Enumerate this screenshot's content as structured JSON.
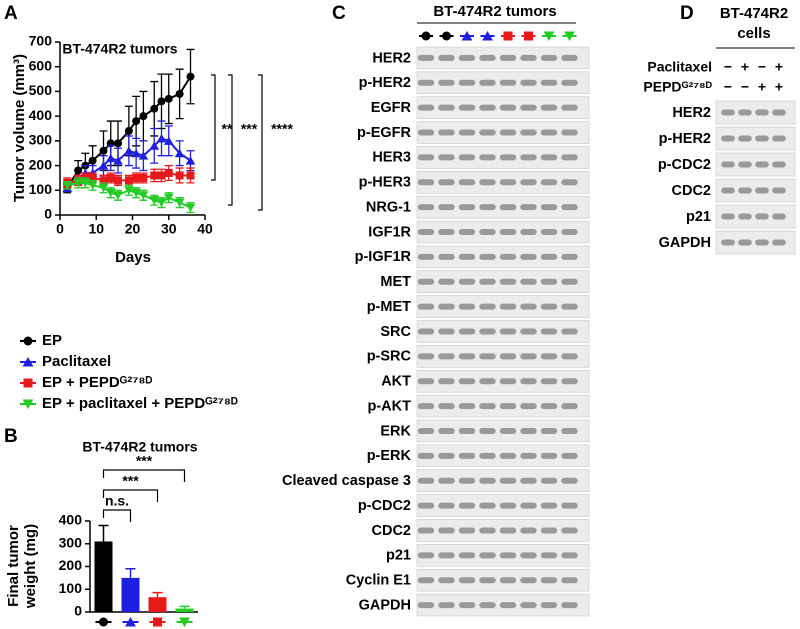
{
  "panel_labels": [
    "A",
    "B",
    "C",
    "D"
  ],
  "chart_data": [
    {
      "type": "line",
      "title": "BT-474R2 tumors",
      "xlabel": "Days",
      "ylabel": "Tumor volume (mm³)",
      "x": [
        2,
        5,
        7,
        9,
        12,
        14,
        16,
        19,
        21,
        23,
        26,
        28,
        30,
        33,
        36
      ],
      "xlim": [
        0,
        40
      ],
      "xticks": [
        0,
        10,
        20,
        30,
        40
      ],
      "ylim": [
        0,
        700
      ],
      "yticks": [
        0,
        100,
        200,
        300,
        400,
        500,
        600,
        700
      ],
      "series": [
        {
          "name": "EP",
          "color": "#000000",
          "marker": "circle",
          "values": [
            110,
            180,
            200,
            220,
            260,
            290,
            290,
            340,
            380,
            400,
            430,
            460,
            470,
            490,
            560
          ],
          "errors": [
            20,
            40,
            50,
            60,
            80,
            90,
            90,
            100,
            100,
            100,
            110,
            110,
            100,
            100,
            110
          ]
        },
        {
          "name": "Paclitaxel",
          "color": "#1f1fe0",
          "marker": "triangle",
          "values": [
            110,
            140,
            170,
            170,
            200,
            230,
            220,
            260,
            250,
            240,
            280,
            310,
            300,
            250,
            220
          ],
          "errors": [
            15,
            20,
            30,
            30,
            40,
            50,
            50,
            60,
            60,
            60,
            70,
            70,
            60,
            50,
            40
          ]
        },
        {
          "name": "EP + PEPDᴳ²⁷⁸ᴰ",
          "color": "#e8191a",
          "marker": "square",
          "values": [
            130,
            140,
            150,
            150,
            140,
            150,
            140,
            140,
            150,
            150,
            160,
            160,
            170,
            160,
            160
          ],
          "errors": [
            20,
            20,
            20,
            20,
            20,
            20,
            20,
            20,
            20,
            20,
            25,
            25,
            30,
            30,
            30
          ]
        },
        {
          "name": "EP + paclitaxel + PEPDᴳ²⁷⁸ᴰ",
          "color": "#22cc22",
          "marker": "triangle-down",
          "values": [
            120,
            130,
            130,
            120,
            110,
            90,
            80,
            100,
            90,
            80,
            60,
            50,
            70,
            50,
            30
          ],
          "errors": [
            15,
            20,
            20,
            20,
            20,
            20,
            20,
            20,
            20,
            20,
            20,
            20,
            20,
            20,
            20
          ]
        }
      ],
      "annotations": [
        "**",
        "***",
        "****"
      ]
    },
    {
      "type": "bar",
      "title": "BT-474R2 tumors",
      "ylabel": [
        "Final tumor",
        "weight (mg)"
      ],
      "values": [
        310,
        150,
        65,
        15
      ],
      "errors": [
        70,
        40,
        20,
        10
      ],
      "colors": [
        "#000000",
        "#1f1fe0",
        "#e8191a",
        "#22cc22"
      ],
      "markers": [
        "circle",
        "triangle",
        "square",
        "triangle-down"
      ],
      "ylim": [
        0,
        400
      ],
      "yticks": [
        0,
        100,
        200,
        300,
        400
      ],
      "annotations": [
        "n.s.",
        "***",
        "***"
      ]
    }
  ],
  "blot_c": {
    "title": "BT-474R2 tumors",
    "proteins": [
      "HER2",
      "p-HER2",
      "EGFR",
      "p-EGFR",
      "HER3",
      "p-HER3",
      "NRG-1",
      "IGF1R",
      "p-IGF1R",
      "MET",
      "p-MET",
      "SRC",
      "p-SRC",
      "AKT",
      "p-AKT",
      "ERK",
      "p-ERK",
      "Cleaved caspase 3",
      "p-CDC2",
      "CDC2",
      "p21",
      "Cyclin E1",
      "GAPDH"
    ]
  },
  "blot_d": {
    "title": [
      "BT-474R2",
      "cells"
    ],
    "conditions": [
      {
        "name": "Paclitaxel",
        "signs": [
          "−",
          "+",
          "−",
          "+"
        ]
      },
      {
        "name": "PEPDᴳ²⁷⁸ᴰ",
        "signs": [
          "−",
          "−",
          "+",
          "+"
        ]
      }
    ],
    "proteins": [
      "HER2",
      "p-HER2",
      "p-CDC2",
      "CDC2",
      "p21",
      "GAPDH"
    ]
  }
}
